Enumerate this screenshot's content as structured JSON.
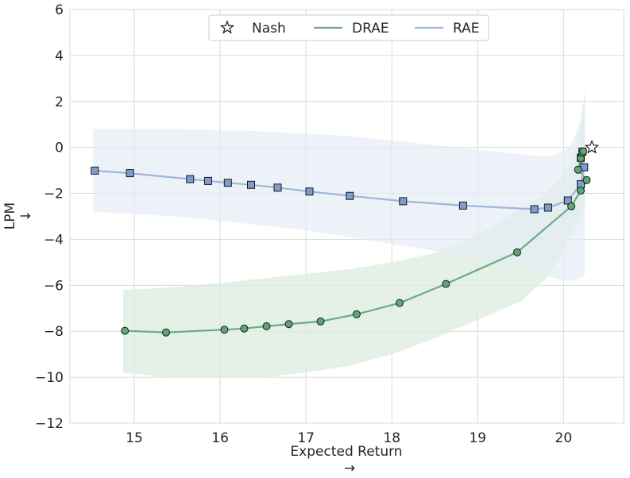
{
  "chart_data": {
    "type": "line",
    "xlabel": "Expected Return",
    "xlabel_arrow": "→",
    "ylabel": "LPM",
    "ylabel_arrow": "↓",
    "xlim": [
      14.25,
      20.7
    ],
    "ylim": [
      -12,
      6
    ],
    "xticks": [
      15,
      16,
      17,
      18,
      19,
      20
    ],
    "yticks": [
      6,
      4,
      2,
      0,
      -2,
      -4,
      -6,
      -8,
      -10,
      -12
    ],
    "ytick_labels": [
      "6",
      "4",
      "2",
      "0",
      "−2",
      "−4",
      "−6",
      "−8",
      "−10",
      "−12"
    ],
    "grid": true,
    "legend_position": "top-center",
    "colors": {
      "drae": "#6aab86",
      "drae_marker": "#5aa778",
      "drae_band": "#dcebdf",
      "rae": "#9fb6d8",
      "rae_marker": "#7f9ccf",
      "rae_band": "#e4ebf4",
      "grid": "#d9d9d9",
      "marker_edge": "#1a1a1a"
    },
    "series": [
      {
        "name": "Nash",
        "kind": "marker",
        "marker": "star",
        "x": [
          20.33
        ],
        "y": [
          0.0
        ]
      },
      {
        "name": "DRAE",
        "kind": "line",
        "marker": "circle",
        "x": [
          14.89,
          15.37,
          16.05,
          16.28,
          16.54,
          16.8,
          17.17,
          17.59,
          18.09,
          18.63,
          19.46,
          20.09,
          20.2,
          20.27,
          20.17,
          20.2,
          20.22,
          20.23
        ],
        "y": [
          -7.98,
          -8.05,
          -7.93,
          -7.88,
          -7.78,
          -7.69,
          -7.57,
          -7.26,
          -6.77,
          -5.94,
          -4.56,
          -2.56,
          -1.88,
          -1.42,
          -0.97,
          -0.48,
          -0.24,
          -0.17
        ],
        "band": {
          "x": [
            14.87,
            15.4,
            16.0,
            16.5,
            17.0,
            17.5,
            18.0,
            18.5,
            19.0,
            19.5,
            19.8,
            20.0,
            20.1,
            20.2,
            20.25
          ],
          "lower": [
            -9.8,
            -10.0,
            -10.0,
            -10.0,
            -9.8,
            -9.5,
            -9.0,
            -8.3,
            -7.5,
            -6.7,
            -5.7,
            -4.5,
            -3.8,
            -3.0,
            -2.6
          ],
          "upper": [
            -6.2,
            -6.1,
            -5.9,
            -5.7,
            -5.5,
            -5.3,
            -5.0,
            -4.6,
            -3.8,
            -2.7,
            -2.0,
            -1.2,
            -0.5,
            1.0,
            2.5
          ]
        }
      },
      {
        "name": "RAE",
        "kind": "line",
        "marker": "square",
        "x": [
          14.54,
          14.95,
          15.65,
          15.86,
          16.09,
          16.36,
          16.67,
          17.04,
          17.51,
          18.13,
          18.83,
          19.66,
          19.82,
          20.05,
          20.2,
          20.24,
          20.2,
          20.22
        ],
        "y": [
          -1.01,
          -1.12,
          -1.38,
          -1.46,
          -1.54,
          -1.63,
          -1.75,
          -1.92,
          -2.11,
          -2.34,
          -2.53,
          -2.69,
          -2.62,
          -2.31,
          -1.6,
          -0.86,
          -0.45,
          -0.18
        ],
        "band": {
          "x": [
            14.52,
            15.0,
            15.5,
            16.0,
            16.5,
            17.0,
            17.5,
            18.0,
            18.5,
            19.0,
            19.5,
            19.8,
            20.0,
            20.1,
            20.2,
            20.25
          ],
          "lower": [
            -2.8,
            -2.9,
            -3.0,
            -3.2,
            -3.4,
            -3.6,
            -3.9,
            -4.2,
            -4.5,
            -4.8,
            -5.2,
            -5.6,
            -5.8,
            -5.8,
            -5.7,
            -5.5
          ],
          "upper": [
            0.8,
            0.8,
            0.8,
            0.75,
            0.7,
            0.6,
            0.5,
            0.3,
            0.1,
            -0.1,
            -0.3,
            -0.4,
            -0.2,
            0.2,
            1.2,
            2.3
          ]
        }
      }
    ]
  }
}
